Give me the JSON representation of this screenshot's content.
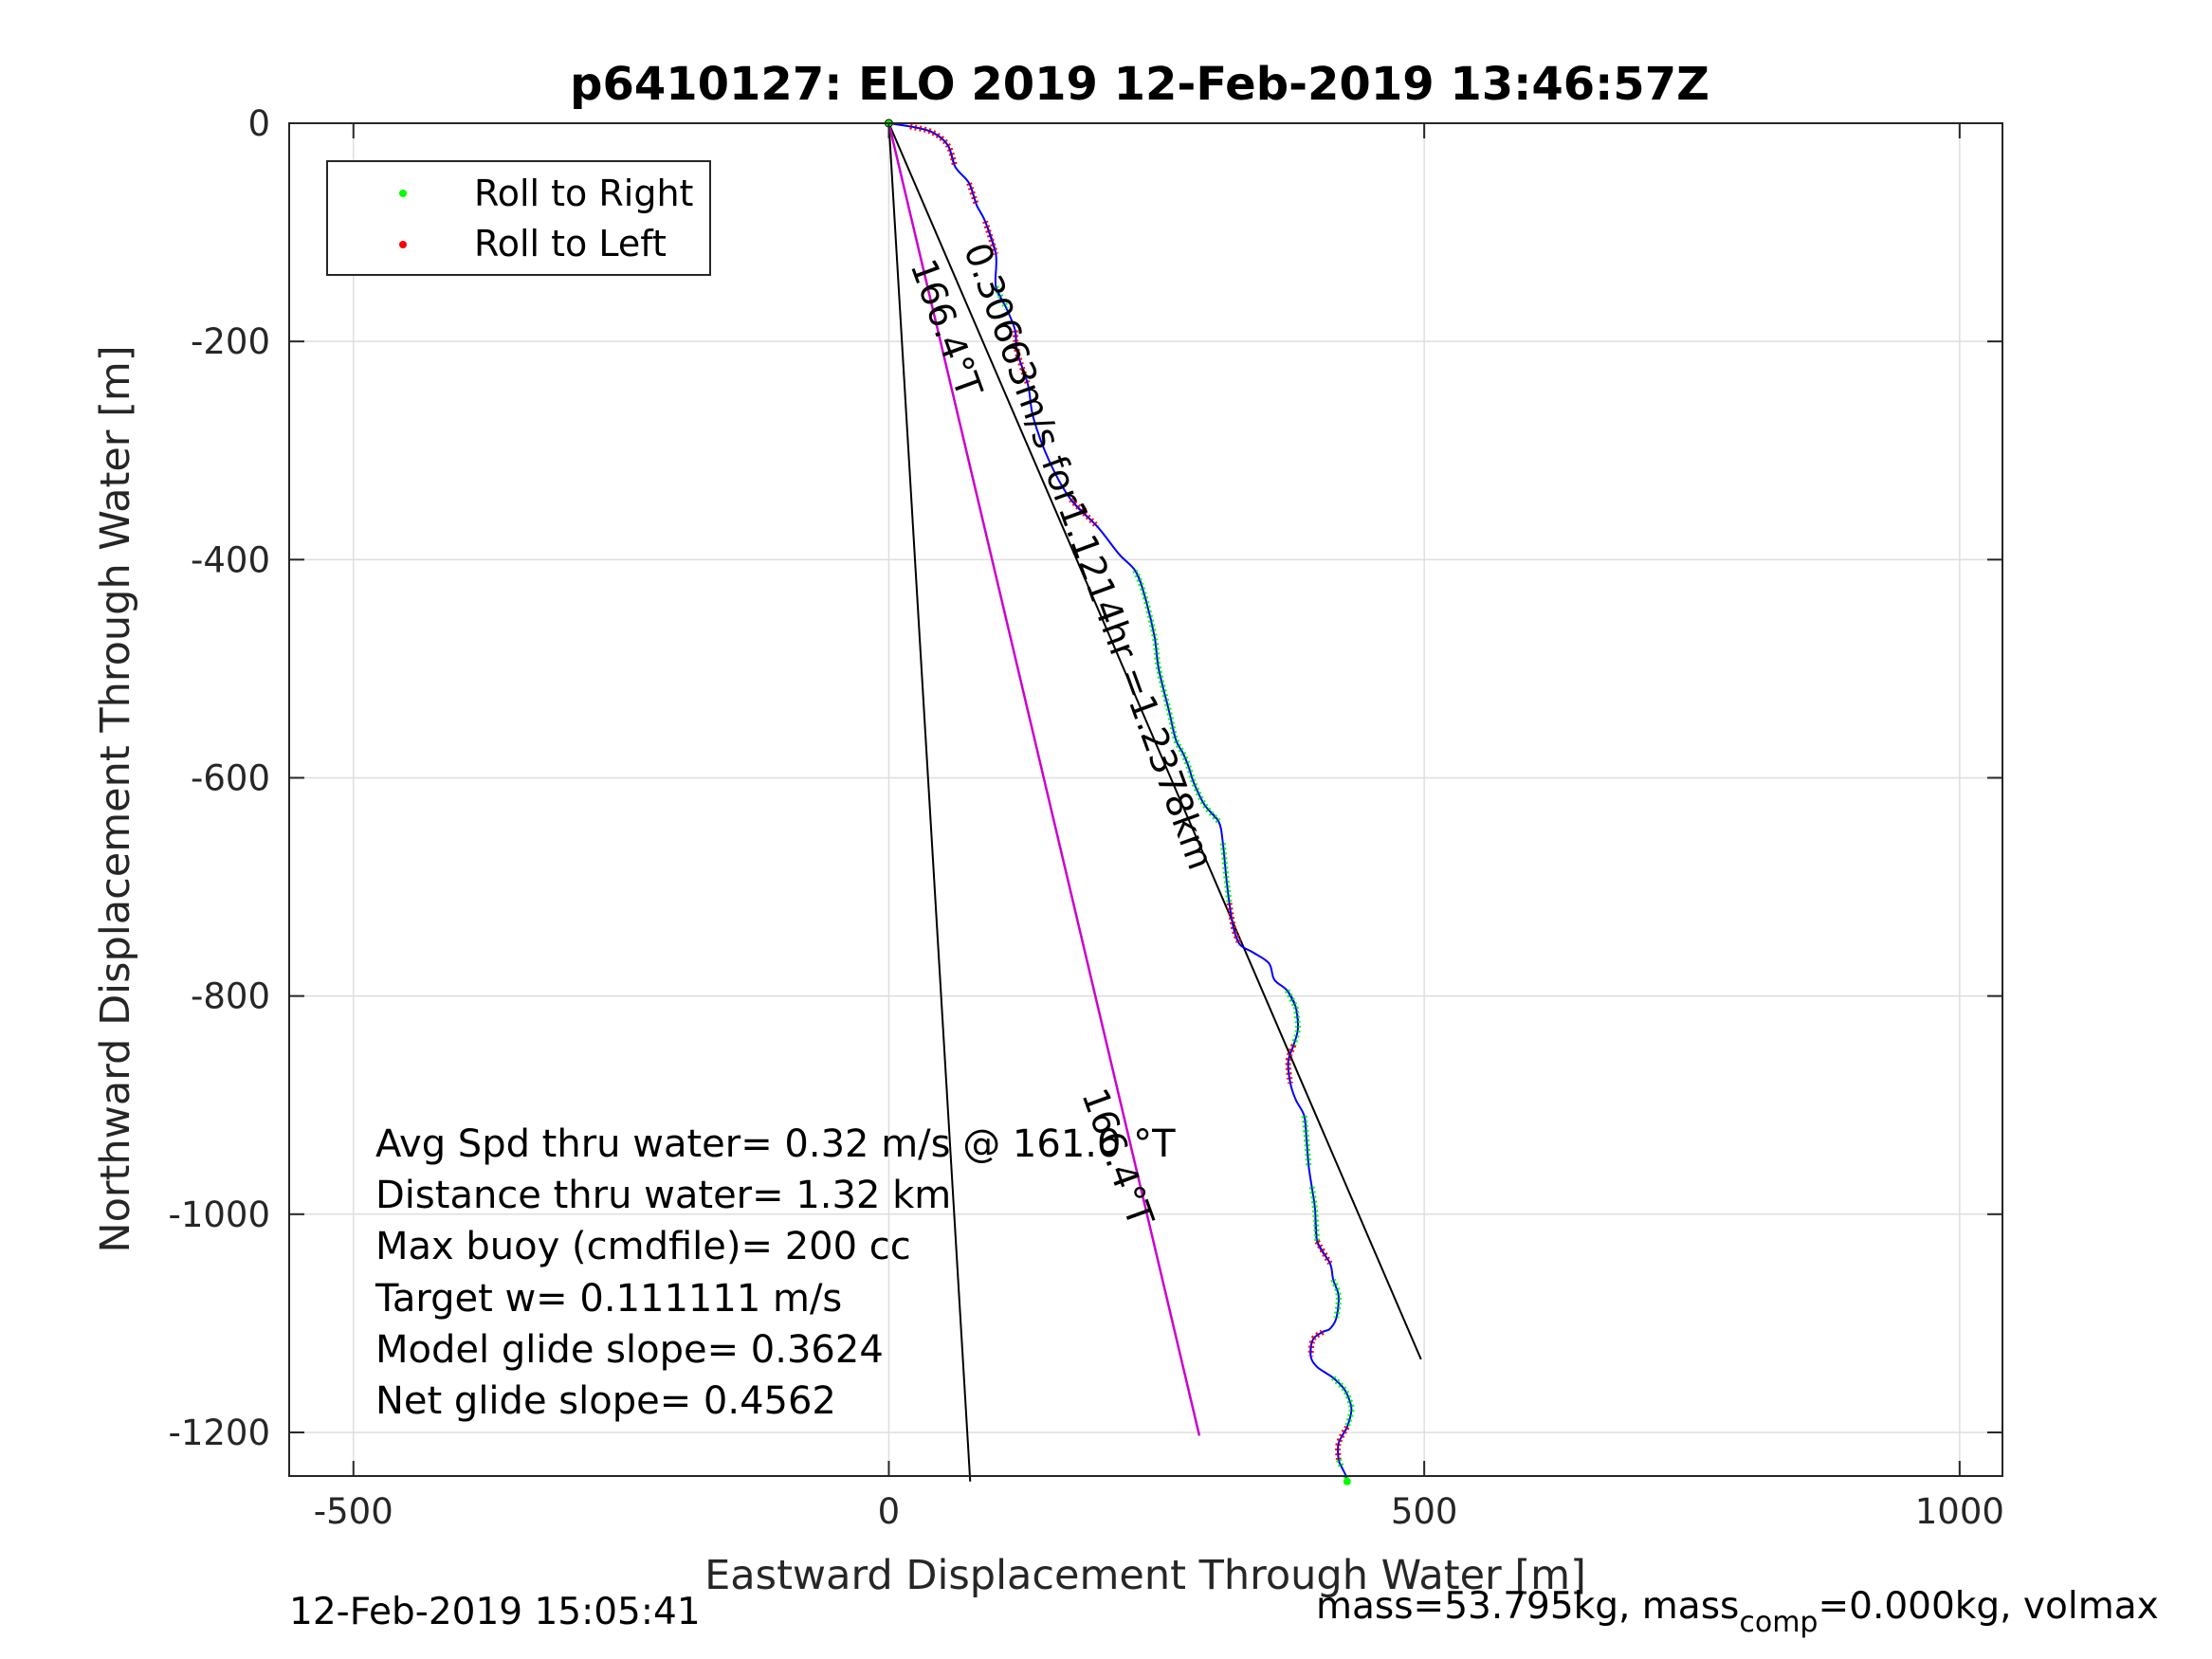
{
  "chart_data": {
    "type": "line",
    "title": "p6410127: ELO 2019 12-Feb-2019 13:46:57Z",
    "xlabel": "Eastward Displacement Through Water [m]",
    "ylabel": "Northward Displacement Through Water [m]",
    "xlim": [
      -560,
      1040
    ],
    "ylim": [
      -1240,
      0
    ],
    "xticks": [
      "-500",
      "0",
      "500",
      "1000"
    ],
    "yticks": [
      "0",
      "-200",
      "-400",
      "-600",
      "-800",
      "-1000",
      "-1200"
    ],
    "xtick_values": [
      -500,
      0,
      500,
      1000
    ],
    "ytick_values": [
      0,
      -200,
      -400,
      -600,
      -800,
      -1000,
      -1200
    ],
    "grid": true,
    "legend": {
      "placement": "top-left",
      "entries": [
        {
          "label": "Roll to Right",
          "color": "#00ff00"
        },
        {
          "label": "Roll to Left",
          "color": "#ff0000"
        }
      ]
    },
    "track": {
      "name": "track",
      "color": "#0000ff",
      "x": [
        0,
        20,
        40,
        55,
        62,
        75,
        82,
        90,
        100,
        100,
        110,
        118,
        120,
        130,
        135,
        150,
        170,
        195,
        215,
        230,
        238,
        248,
        252,
        262,
        268,
        275,
        280,
        285,
        295,
        308,
        312,
        315,
        318,
        322,
        328,
        340,
        355,
        360,
        372,
        380,
        382,
        378,
        373,
        375,
        380,
        388,
        390,
        392,
        395,
        398,
        400,
        412,
        415,
        420,
        418,
        412,
        405,
        396,
        394,
        400,
        415,
        425,
        430,
        432,
        428,
        420,
        420,
        423,
        427,
        428
      ],
      "y": [
        0,
        -3,
        -8,
        -20,
        -40,
        -55,
        -75,
        -90,
        -120,
        -150,
        -170,
        -190,
        -210,
        -240,
        -270,
        -310,
        -345,
        -370,
        -395,
        -410,
        -430,
        -470,
        -500,
        -540,
        -565,
        -578,
        -590,
        -605,
        -625,
        -640,
        -660,
        -690,
        -715,
        -738,
        -753,
        -760,
        -770,
        -785,
        -795,
        -810,
        -830,
        -845,
        -860,
        -880,
        -895,
        -910,
        -930,
        -955,
        -975,
        -995,
        -1025,
        -1045,
        -1060,
        -1075,
        -1095,
        -1105,
        -1108,
        -1115,
        -1130,
        -1140,
        -1150,
        -1160,
        -1170,
        -1180,
        -1195,
        -1210,
        -1225,
        -1232,
        -1240,
        -1245
      ]
    },
    "series": [
      {
        "x": [
          0,
          76
        ],
        "y": [
          0,
          -1245
        ]
      },
      {
        "x": [
          0,
          497
        ],
        "y": [
          0,
          -1133
        ]
      },
      {
        "x": [
          0,
          290
        ],
        "y": [
          0,
          -1203
        ],
        "color": "#cc00cc"
      }
    ],
    "annotations": [
      {
        "text": "166.4°T",
        "x": 20,
        "y": -130,
        "angle": 70
      },
      {
        "text": "0.30663m/s for1.1214hr =1.2378km",
        "x": 70,
        "y": -115,
        "angle": 70
      },
      {
        "text": "166.4°T",
        "x": 180,
        "y": -890,
        "angle": 70
      }
    ],
    "info_lines": [
      "Avg Spd thru water=  0.32 m/s @ 161.0 °T",
      "Distance thru water=  1.32 km",
      "Max buoy (cmdfile)= 200 cc",
      "Target w= 0.111111 m/s",
      "Model glide slope= 0.3624",
      "Net glide slope= 0.4562"
    ],
    "footer_left": "12-Feb-2019 15:05:41",
    "footer_right": {
      "part1": "mass=53.795kg, mass",
      "sub": "comp",
      "part2": "=0.000kg, volmax"
    }
  }
}
